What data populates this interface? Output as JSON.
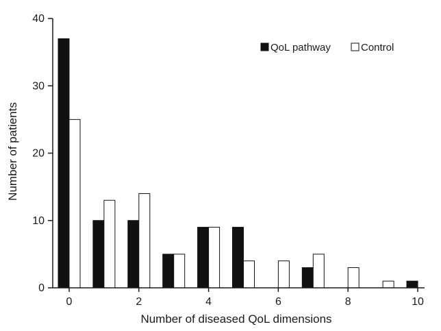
{
  "chart_data": {
    "type": "bar",
    "categories": [
      0,
      1,
      2,
      3,
      4,
      5,
      6,
      7,
      8,
      9,
      10
    ],
    "xticks": [
      0,
      2,
      4,
      6,
      8,
      10
    ],
    "yticks": [
      0,
      10,
      20,
      30,
      40
    ],
    "series": [
      {
        "name": "QoL pathway",
        "values": [
          37,
          10,
          10,
          5,
          9,
          9,
          0,
          3,
          0,
          0,
          1
        ],
        "fill": "#111111"
      },
      {
        "name": "Control",
        "values": [
          25,
          13,
          14,
          5,
          9,
          4,
          4,
          5,
          3,
          1,
          0
        ],
        "fill": "#ffffff"
      }
    ],
    "xlabel": "Number of diseased QoL dimensions",
    "ylabel": "Number of patients",
    "ylim": [
      0,
      40
    ],
    "legend_position": "top-right",
    "grid": false
  }
}
